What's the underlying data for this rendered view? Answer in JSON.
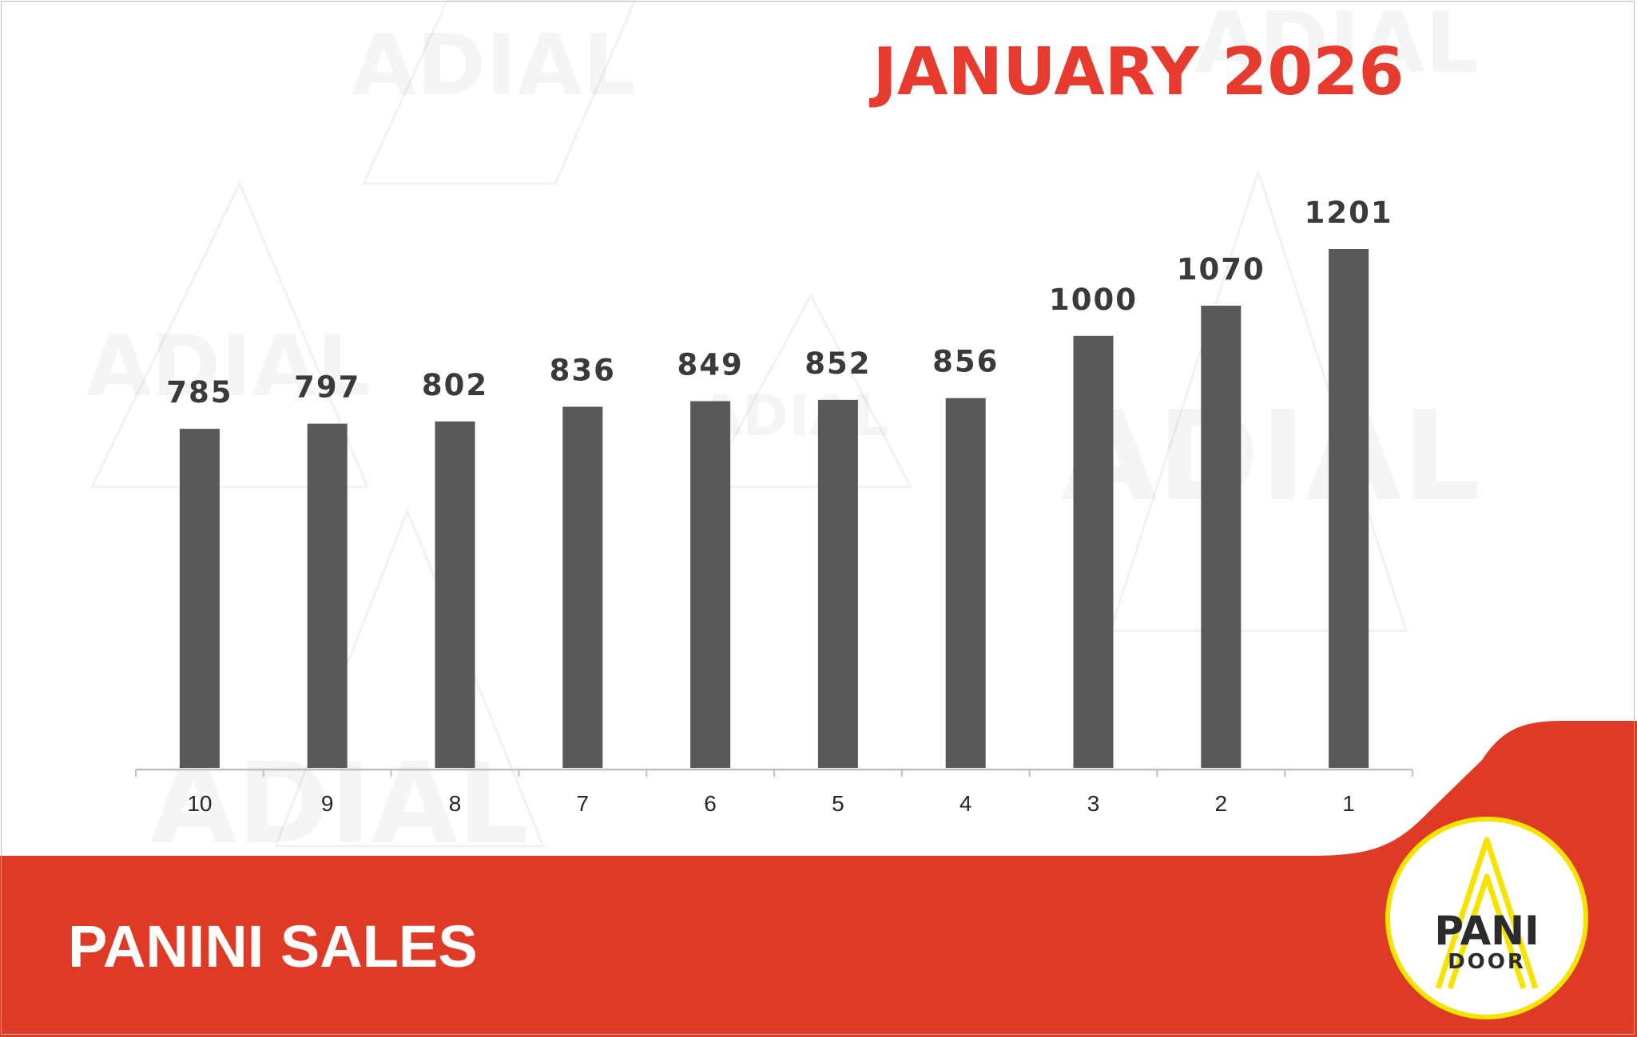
{
  "chart_data": {
    "type": "bar",
    "title": "JANUARY 2026",
    "categories": [
      "10",
      "9",
      "8",
      "7",
      "6",
      "5",
      "4",
      "3",
      "2",
      "1"
    ],
    "values": [
      785,
      797,
      802,
      836,
      849,
      852,
      856,
      1000,
      1070,
      1201
    ],
    "xlabel": "",
    "ylabel": "",
    "ylim": [
      0,
      1201
    ],
    "grid": false,
    "legend": "none"
  },
  "footer": {
    "caption": "PANINI SALES"
  },
  "logo": {
    "text_top": "PANI",
    "text_bottom": "DOOR"
  },
  "watermark_text": "ADIAL",
  "colors": {
    "title": "#e63b2e",
    "bar": "#595959",
    "value_label": "#3a3a3a",
    "tick_label": "#262626",
    "axis": "#bfbfbf",
    "banner": "#de3a25",
    "footer_text": "#ffffff",
    "logo_fill": "#ffffff",
    "logo_ring": "#f5e400",
    "logo_text": "#2b2b2b",
    "logo_mark": "#f5e400"
  }
}
